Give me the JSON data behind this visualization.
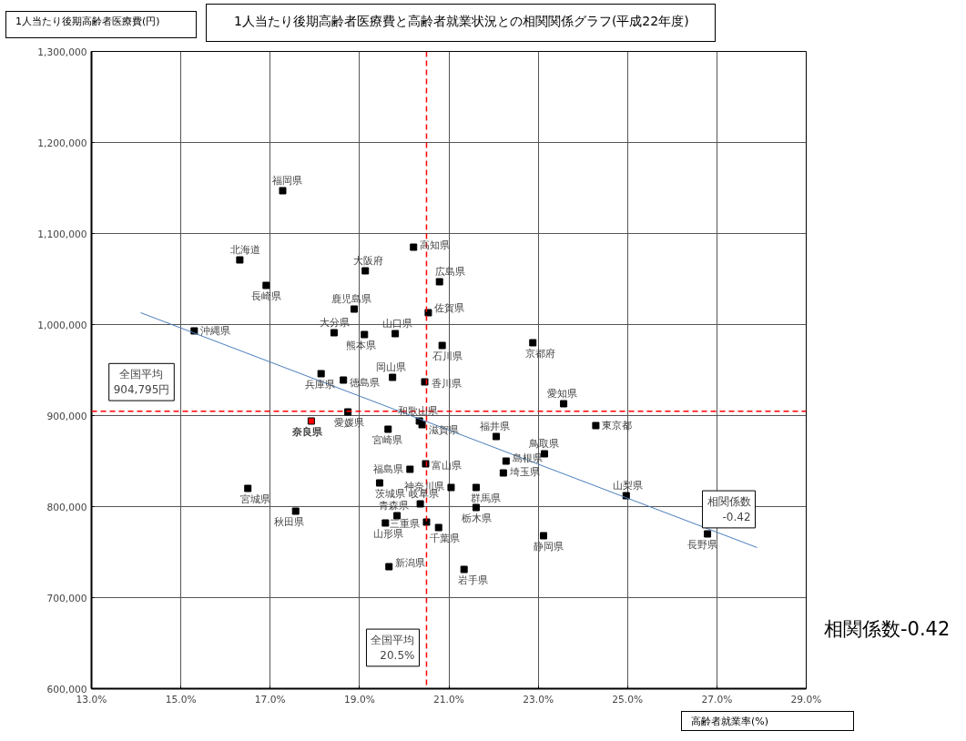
{
  "chart_data": {
    "type": "scatter",
    "title": "1人当たり後期高齢者医療費と高齢者就業状況との相関関係グラフ(平成22年度)",
    "ylabel": "1人当たり後期高齢者医療費(円)",
    "xlabel": "高齢者就業率(%)",
    "xlim": [
      13,
      29
    ],
    "xticks": [
      {
        "value": 13,
        "label": "13.0%"
      },
      {
        "value": 15,
        "label": "15.0%"
      },
      {
        "value": 17,
        "label": "17.0%"
      },
      {
        "value": 19,
        "label": "19.0%"
      },
      {
        "value": 21,
        "label": "21.0%"
      },
      {
        "value": 23,
        "label": "23.0%"
      },
      {
        "value": 25,
        "label": "25.0%"
      },
      {
        "value": 27,
        "label": "27.0%"
      },
      {
        "value": 29,
        "label": "29.0%"
      }
    ],
    "ylim": [
      600000,
      1300000
    ],
    "yticks": [
      {
        "value": 600000,
        "label": "600,000"
      },
      {
        "value": 700000,
        "label": "700,000"
      },
      {
        "value": 800000,
        "label": "800,000"
      },
      {
        "value": 900000,
        "label": "900,000"
      },
      {
        "value": 1000000,
        "label": "1,000,000"
      },
      {
        "value": 1100000,
        "label": "1,100,000"
      },
      {
        "value": 1200000,
        "label": "1,200,000"
      },
      {
        "value": 1300000,
        "label": "1,300,000"
      }
    ],
    "grid": true,
    "marker": "square",
    "ref_lines": [
      {
        "axis": "y",
        "value": 904795,
        "label": "全国平均\n904,795円",
        "color": "#ff0000",
        "line_style": "dashed"
      },
      {
        "axis": "x",
        "value": 20.5,
        "label": "全国平均\n20.5%",
        "color": "#ff0000",
        "line_style": "dashed"
      }
    ],
    "annotations": [
      "相関係数-0.42",
      "相関係数\n-0.42"
    ],
    "series": [
      {
        "name": "福岡県",
        "color": "#000000",
        "x": [
          17.28
        ],
        "values": [
          1147000
        ]
      },
      {
        "name": "北海道",
        "color": "#000000",
        "x": [
          16.32
        ],
        "values": [
          1071000
        ]
      },
      {
        "name": "長崎県",
        "color": "#000000",
        "x": [
          16.91
        ],
        "values": [
          1043000
        ]
      },
      {
        "name": "高知県",
        "color": "#000000",
        "x": [
          20.21
        ],
        "values": [
          1085000
        ]
      },
      {
        "name": "大阪府",
        "color": "#000000",
        "x": [
          19.13
        ],
        "values": [
          1059000
        ]
      },
      {
        "name": "広島県",
        "color": "#000000",
        "x": [
          20.79
        ],
        "values": [
          1047000
        ]
      },
      {
        "name": "鹿児島県",
        "color": "#000000",
        "x": [
          18.88
        ],
        "values": [
          1017000
        ]
      },
      {
        "name": "佐賀県",
        "color": "#000000",
        "x": [
          20.54
        ],
        "values": [
          1013000
        ]
      },
      {
        "name": "沖縄県",
        "color": "#000000",
        "x": [
          15.3
        ],
        "values": [
          993000
        ]
      },
      {
        "name": "大分県",
        "color": "#000000",
        "x": [
          18.43
        ],
        "values": [
          991000
        ]
      },
      {
        "name": "熊本県",
        "color": "#000000",
        "x": [
          19.11
        ],
        "values": [
          989000
        ]
      },
      {
        "name": "山口県",
        "color": "#000000",
        "x": [
          19.8
        ],
        "values": [
          990000
        ]
      },
      {
        "name": "石川県",
        "color": "#000000",
        "x": [
          20.85
        ],
        "values": [
          977000
        ]
      },
      {
        "name": "京都府",
        "color": "#000000",
        "x": [
          22.88
        ],
        "values": [
          980000
        ]
      },
      {
        "name": "兵庫県",
        "color": "#000000",
        "x": [
          18.14
        ],
        "values": [
          946000
        ]
      },
      {
        "name": "徳島県",
        "color": "#000000",
        "x": [
          18.64
        ],
        "values": [
          939000
        ]
      },
      {
        "name": "岡山県",
        "color": "#000000",
        "x": [
          19.74
        ],
        "values": [
          942000
        ]
      },
      {
        "name": "香川県",
        "color": "#000000",
        "x": [
          20.46
        ],
        "values": [
          937000
        ]
      },
      {
        "name": "愛知県",
        "color": "#000000",
        "x": [
          23.57
        ],
        "values": [
          913000
        ]
      },
      {
        "name": "和歌山県",
        "color": "#000000",
        "x": [
          20.34
        ],
        "values": [
          894000
        ]
      },
      {
        "name": "滋賀県",
        "color": "#000000",
        "x": [
          20.4
        ],
        "values": [
          890000
        ]
      },
      {
        "name": "愛媛県",
        "color": "#000000",
        "x": [
          18.74
        ],
        "values": [
          904000
        ]
      },
      {
        "name": "奈良県",
        "color": "#ff0000",
        "x": [
          17.92
        ],
        "values": [
          894000
        ]
      },
      {
        "name": "宮崎県",
        "color": "#000000",
        "x": [
          19.64
        ],
        "values": [
          885000
        ]
      },
      {
        "name": "東京都",
        "color": "#000000",
        "x": [
          24.29
        ],
        "values": [
          889000
        ]
      },
      {
        "name": "福井県",
        "color": "#000000",
        "x": [
          22.06
        ],
        "values": [
          877000
        ]
      },
      {
        "name": "鳥取県",
        "color": "#000000",
        "x": [
          23.14
        ],
        "values": [
          858000
        ]
      },
      {
        "name": "島根県",
        "color": "#000000",
        "x": [
          22.28
        ],
        "values": [
          850000
        ]
      },
      {
        "name": "埼玉県",
        "color": "#000000",
        "x": [
          22.22
        ],
        "values": [
          837000
        ]
      },
      {
        "name": "富山県",
        "color": "#000000",
        "x": [
          20.48
        ],
        "values": [
          847000
        ]
      },
      {
        "name": "福島県",
        "color": "#000000",
        "x": [
          20.13
        ],
        "values": [
          841000
        ]
      },
      {
        "name": "神奈川県",
        "color": "#000000",
        "x": [
          21.05
        ],
        "values": [
          821000
        ]
      },
      {
        "name": "茨城県",
        "color": "#000000",
        "x": [
          19.45
        ],
        "values": [
          826000
        ]
      },
      {
        "name": "群馬県",
        "color": "#000000",
        "x": [
          21.61
        ],
        "values": [
          821000
        ]
      },
      {
        "name": "栃木県",
        "color": "#000000",
        "x": [
          21.61
        ],
        "values": [
          799000
        ]
      },
      {
        "name": "岐阜県",
        "color": "#000000",
        "x": [
          20.36
        ],
        "values": [
          803000
        ]
      },
      {
        "name": "三重県",
        "color": "#000000",
        "x": [
          20.5
        ],
        "values": [
          783000
        ]
      },
      {
        "name": "千葉県",
        "color": "#000000",
        "x": [
          20.77
        ],
        "values": [
          777000
        ]
      },
      {
        "name": "青森県",
        "color": "#000000",
        "x": [
          19.84
        ],
        "values": [
          790000
        ]
      },
      {
        "name": "山形県",
        "color": "#000000",
        "x": [
          19.58
        ],
        "values": [
          782000
        ]
      },
      {
        "name": "新潟県",
        "color": "#000000",
        "x": [
          19.66
        ],
        "values": [
          734000
        ]
      },
      {
        "name": "岩手県",
        "color": "#000000",
        "x": [
          21.34
        ],
        "values": [
          731000
        ]
      },
      {
        "name": "宮城県",
        "color": "#000000",
        "x": [
          16.5
        ],
        "values": [
          820000
        ]
      },
      {
        "name": "秋田県",
        "color": "#000000",
        "x": [
          17.57
        ],
        "values": [
          795000
        ]
      },
      {
        "name": "静岡県",
        "color": "#000000",
        "x": [
          23.12
        ],
        "values": [
          768000
        ]
      },
      {
        "name": "山梨県",
        "color": "#000000",
        "x": [
          24.97
        ],
        "values": [
          812000
        ]
      },
      {
        "name": "長野県",
        "color": "#000000",
        "x": [
          26.79
        ],
        "values": [
          770000
        ]
      },
      {
        "type": "line",
        "marker": "none",
        "color": "#4a7ebb",
        "x": [
          14.1,
          27.9
        ],
        "values": [
          1013000,
          755000
        ]
      }
    ]
  }
}
